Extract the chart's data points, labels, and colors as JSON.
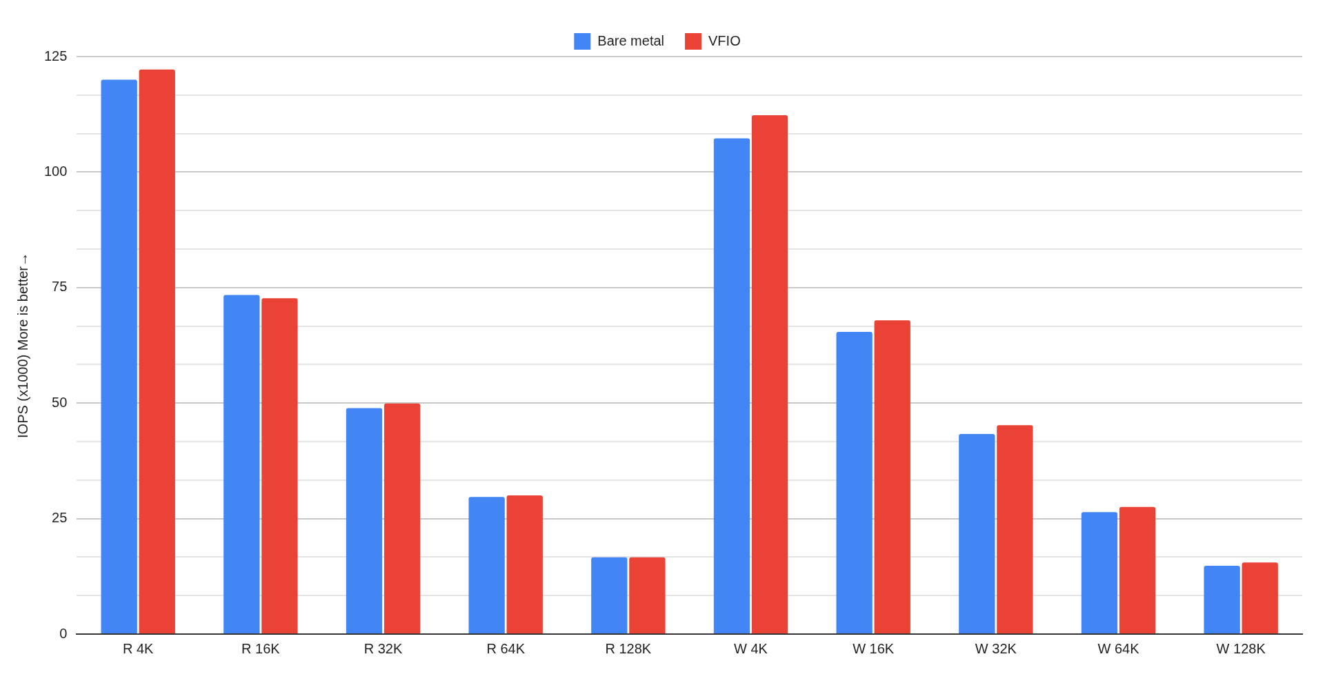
{
  "chart_data": {
    "type": "bar",
    "ylabel": "IOPS (x1000) More is better→",
    "categories": [
      "R 4K",
      "R 16K",
      "R 32K",
      "R 64K",
      "R 128K",
      "W 4K",
      "W 16K",
      "W 32K",
      "W 64K",
      "W 128K"
    ],
    "series": [
      {
        "name": "Bare metal",
        "color": "#4285f4",
        "values": [
          120.0,
          73.4,
          48.9,
          29.7,
          16.6,
          107.3,
          65.4,
          43.3,
          26.4,
          14.8
        ]
      },
      {
        "name": "VFIO",
        "color": "#ea4335",
        "values": [
          122.2,
          72.7,
          49.9,
          30.0,
          16.6,
          112.3,
          67.9,
          45.2,
          27.5,
          15.5
        ]
      }
    ],
    "ylim": [
      0,
      125
    ],
    "yticks": [
      0,
      {
        "value": 8.333,
        "label": null
      },
      {
        "value": 16.667,
        "label": null
      },
      25,
      {
        "value": 33.333,
        "label": null
      },
      {
        "value": 41.667,
        "label": null
      },
      50,
      {
        "value": 58.333,
        "label": null
      },
      {
        "value": 66.667,
        "label": null
      },
      75,
      {
        "value": 83.333,
        "label": null
      },
      {
        "value": 91.667,
        "label": null
      },
      100,
      {
        "value": 108.333,
        "label": null
      },
      {
        "value": 116.667,
        "label": null
      },
      125
    ],
    "grid": "y",
    "legend": "top"
  }
}
